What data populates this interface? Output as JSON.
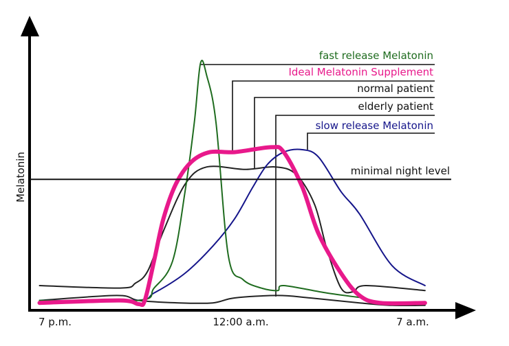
{
  "chart_data": {
    "type": "line",
    "title": "",
    "ylabel": "Melatonin",
    "xlabel": "",
    "x_ticks": [
      "7 p.m.",
      "12:00 a.m.",
      "7 a.m."
    ],
    "ylim": [
      0,
      100
    ],
    "y_units": "relative (no numeric ticks shown)",
    "grid": false,
    "legend_placement": "top-right, labels with leader lines",
    "reference_line": {
      "label": "minimal night level",
      "value": 53,
      "color": "#111111"
    },
    "series": [
      {
        "name": "fast release Melatonin",
        "color": "#1e6b1e",
        "width": 2,
        "points": [
          [
            "18:35",
            4
          ],
          [
            "21:15",
            4
          ],
          [
            "21:40",
            9
          ],
          [
            "22:10",
            20
          ],
          [
            "22:30",
            48
          ],
          [
            "22:45",
            76
          ],
          [
            "22:55",
            100
          ],
          [
            "23:05",
            95
          ],
          [
            "23:20",
            76
          ],
          [
            "23:40",
            22
          ],
          [
            "00:05",
            12.5
          ],
          [
            "00:50",
            9
          ],
          [
            "01:30",
            8
          ],
          [
            "01:45",
            10
          ],
          [
            "03:30",
            7
          ],
          [
            "05:00",
            5
          ]
        ]
      },
      {
        "name": "Ideal Melatonin Supplement",
        "color": "#e8198b",
        "width": 6,
        "points": [
          [
            "18:35",
            3
          ],
          [
            "20:45",
            4
          ],
          [
            "21:15",
            2.5
          ],
          [
            "21:25",
            4
          ],
          [
            "21:40",
            20
          ],
          [
            "21:55",
            37
          ],
          [
            "22:15",
            51
          ],
          [
            "22:40",
            60
          ],
          [
            "23:10",
            64
          ],
          [
            "23:50",
            64
          ],
          [
            "01:15",
            66
          ],
          [
            "01:45",
            64
          ],
          [
            "02:30",
            50
          ],
          [
            "03:10",
            31
          ],
          [
            "04:05",
            15
          ],
          [
            "04:50",
            6
          ],
          [
            "05:40",
            3
          ],
          [
            "07:30",
            3
          ]
        ]
      },
      {
        "name": "normal patient",
        "color": "#222222",
        "width": 2,
        "points": [
          [
            "18:35",
            10
          ],
          [
            "20:45",
            9
          ],
          [
            "21:10",
            11
          ],
          [
            "21:30",
            16
          ],
          [
            "21:55",
            32
          ],
          [
            "22:30",
            51
          ],
          [
            "23:05",
            58
          ],
          [
            "00:10",
            57
          ],
          [
            "01:25",
            58
          ],
          [
            "02:15",
            55
          ],
          [
            "03:00",
            43
          ],
          [
            "03:30",
            25
          ],
          [
            "04:05",
            9
          ],
          [
            "04:35",
            7.5
          ],
          [
            "05:05",
            10
          ],
          [
            "07:30",
            8
          ]
        ]
      },
      {
        "name": "elderly patient",
        "color": "#222222",
        "width": 2,
        "points": [
          [
            "18:35",
            4
          ],
          [
            "20:40",
            6
          ],
          [
            "21:15",
            4
          ],
          [
            "22:20",
            3
          ],
          [
            "23:15",
            3
          ],
          [
            "23:50",
            5
          ],
          [
            "01:30",
            6
          ],
          [
            "02:50",
            5
          ],
          [
            "04:50",
            3
          ],
          [
            "06:10",
            2
          ],
          [
            "07:30",
            2
          ]
        ]
      },
      {
        "name": "slow release Melatonin",
        "color": "#15158a",
        "width": 2,
        "points": [
          [
            "18:35",
            4
          ],
          [
            "21:10",
            4
          ],
          [
            "21:40",
            7
          ],
          [
            "22:30",
            15
          ],
          [
            "23:15",
            26
          ],
          [
            "23:50",
            37
          ],
          [
            "00:30",
            50
          ],
          [
            "01:05",
            59
          ],
          [
            "01:45",
            64
          ],
          [
            "02:30",
            65
          ],
          [
            "03:10",
            62
          ],
          [
            "04:05",
            48
          ],
          [
            "04:50",
            39
          ],
          [
            "06:10",
            18
          ],
          [
            "07:30",
            10
          ]
        ]
      }
    ]
  }
}
